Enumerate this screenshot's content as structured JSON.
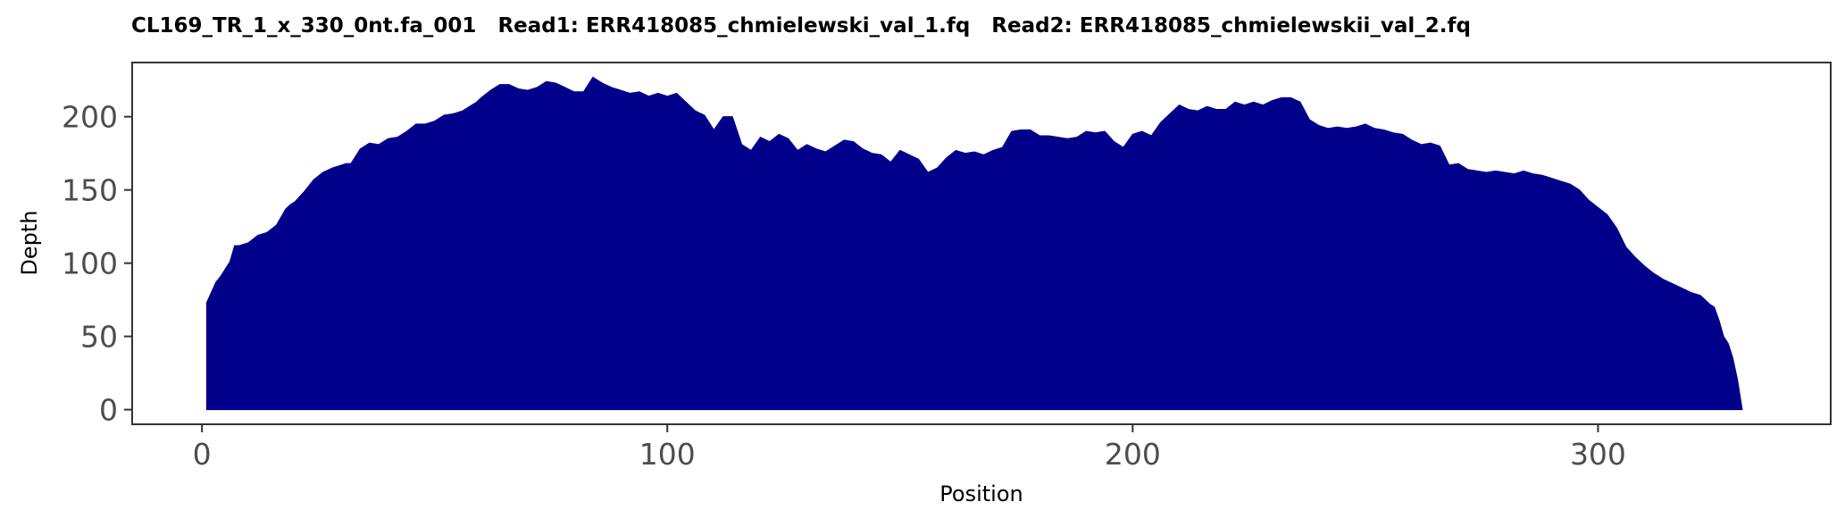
{
  "chart_data": {
    "type": "area",
    "title": "CL169_TR_1_x_330_0nt.fa_001   Read1: ERR418085_chmielewski_val_1.fq   Read2: ERR418085_chmielewskii_val_2.fq",
    "xlabel": "Position",
    "ylabel": "Depth",
    "xlim": [
      -15,
      350
    ],
    "ylim": [
      -10,
      237
    ],
    "x_ticks": [
      0,
      100,
      200,
      300
    ],
    "y_ticks": [
      0,
      50,
      100,
      150,
      200
    ],
    "grid": false,
    "fill_color": "#00008b",
    "series": [
      {
        "x": [
          1,
          2,
          3,
          4,
          5,
          6,
          7,
          8,
          10,
          12,
          14,
          16,
          18,
          19,
          20,
          22,
          24,
          26,
          28,
          30,
          31,
          32,
          34,
          36,
          38,
          40,
          42,
          44,
          46,
          48,
          50,
          52,
          54,
          56,
          58,
          59,
          60,
          62,
          64,
          66,
          68,
          70,
          72,
          74,
          76,
          78,
          80,
          82,
          84,
          86,
          88,
          90,
          92,
          94,
          96,
          98,
          100,
          102,
          104,
          106,
          108,
          110,
          112,
          114,
          116,
          118,
          120,
          122,
          124,
          126,
          128,
          130,
          132,
          134,
          136,
          138,
          140,
          142,
          144,
          146,
          148,
          150,
          152,
          154,
          156,
          158,
          160,
          162,
          164,
          166,
          168,
          170,
          172,
          174,
          176,
          178,
          180,
          182,
          184,
          186,
          188,
          190,
          192,
          194,
          196,
          198,
          200,
          202,
          204,
          206,
          208,
          210,
          212,
          214,
          216,
          218,
          220,
          222,
          224,
          226,
          228,
          230,
          232,
          234,
          236,
          238,
          240,
          242,
          244,
          246,
          248,
          250,
          252,
          254,
          256,
          258,
          260,
          262,
          264,
          266,
          268,
          270,
          272,
          274,
          276,
          278,
          280,
          282,
          284,
          286,
          288,
          290,
          292,
          294,
          296,
          298,
          300,
          302,
          304,
          306,
          308,
          310,
          312,
          314,
          316,
          318,
          320,
          322,
          324,
          325,
          326,
          327,
          328,
          329,
          330,
          331
        ],
        "y": [
          73,
          80,
          87,
          91,
          96,
          101,
          112,
          112,
          114,
          119,
          121,
          126,
          137,
          140,
          142,
          149,
          157,
          162,
          165,
          167,
          168,
          168,
          178,
          182,
          181,
          185,
          186,
          190,
          195,
          195,
          197,
          201,
          202,
          204,
          208,
          210,
          213,
          218,
          222,
          222,
          219,
          218,
          220,
          224,
          223,
          220,
          217,
          217,
          227,
          223,
          220,
          218,
          216,
          217,
          214,
          216,
          214,
          216,
          210,
          204,
          201,
          191,
          200,
          200,
          181,
          177,
          186,
          183,
          188,
          185,
          177,
          181,
          178,
          176,
          180,
          184,
          183,
          178,
          175,
          174,
          169,
          177,
          174,
          171,
          162,
          165,
          172,
          177,
          175,
          176,
          174,
          177,
          179,
          190,
          191,
          191,
          187,
          187,
          186,
          185,
          186,
          190,
          189,
          190,
          183,
          179,
          188,
          190,
          187,
          196,
          202,
          208,
          205,
          204,
          207,
          205,
          205,
          210,
          208,
          210,
          208,
          211,
          213,
          213,
          210,
          198,
          194,
          192,
          193,
          192,
          193,
          195,
          192,
          191,
          189,
          188,
          184,
          181,
          182,
          180,
          167,
          168,
          164,
          163,
          162,
          163,
          162,
          161,
          163,
          161,
          160,
          158,
          156,
          154,
          150,
          143,
          138,
          133,
          124,
          111,
          104,
          98,
          93,
          89,
          86,
          83,
          80,
          78,
          72,
          70,
          61,
          50,
          45,
          35,
          20,
          0
        ]
      }
    ]
  }
}
